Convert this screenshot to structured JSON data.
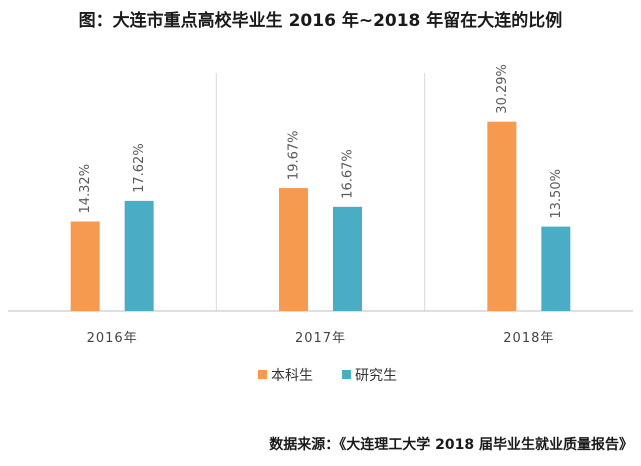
{
  "title": "图：大连市重点高校毕业生 2016 年~2018 年留在大连的比例",
  "source": "数据来源：《大连理工大学 2018 届毕业生就业质量报告》",
  "chart_data": {
    "type": "bar",
    "categories": [
      "2016年",
      "2017年",
      "2018年"
    ],
    "series": [
      {
        "name": "本科生",
        "values": [
          14.32,
          19.67,
          30.29
        ],
        "labels": [
          "14.32%",
          "19.67%",
          "30.29%"
        ],
        "color": "#F59A4F"
      },
      {
        "name": "研究生",
        "values": [
          17.62,
          16.67,
          13.5
        ],
        "labels": [
          "17.62%",
          "16.67%",
          "13.50%"
        ],
        "color": "#4BACC6"
      }
    ],
    "ylim": [
      0,
      40
    ],
    "grid": false,
    "legend_position": "bottom"
  }
}
